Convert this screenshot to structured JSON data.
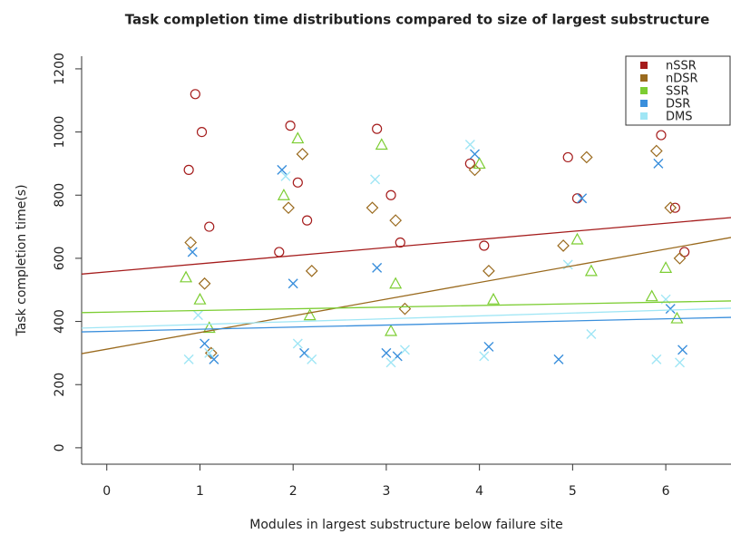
{
  "chart_data": {
    "type": "scatter",
    "title": "Task completion time distributions compared to size of largest substructure",
    "x_label": "Modules in largest substructure below failure site",
    "y_label": "Task completion time(s)",
    "xlim": [
      -0.27,
      6.7
    ],
    "ylim": [
      -52,
      1240
    ],
    "xticks": [
      0,
      1,
      2,
      3,
      4,
      5,
      6
    ],
    "yticks": [
      0,
      200,
      400,
      600,
      800,
      1000,
      1200
    ],
    "legend": "top-right",
    "series": [
      {
        "name": "nSSR",
        "color": "#a51c1c",
        "marker": "circle",
        "x": [
          0.95,
          1.02,
          0.88,
          1.1,
          1.97,
          2.05,
          2.15,
          1.85,
          2.9,
          3.05,
          3.15,
          3.9,
          4.05,
          4.95,
          5.05,
          5.95,
          6.1,
          6.2
        ],
        "values": [
          1120,
          1000,
          880,
          700,
          1020,
          840,
          720,
          620,
          1010,
          800,
          650,
          900,
          640,
          920,
          790,
          990,
          760,
          620
        ],
        "trend_line": {
          "x": [
            -0.27,
            6.7
          ],
          "y": [
            550,
            729
          ]
        }
      },
      {
        "name": "nDSR",
        "color": "#9a6a1e",
        "marker": "diamond",
        "x": [
          0.9,
          1.05,
          1.12,
          1.95,
          2.1,
          2.2,
          2.85,
          3.1,
          3.2,
          3.95,
          4.1,
          4.9,
          5.15,
          5.9,
          6.05,
          6.15
        ],
        "values": [
          650,
          520,
          300,
          760,
          930,
          560,
          760,
          720,
          440,
          880,
          560,
          640,
          920,
          940,
          760,
          600
        ],
        "trend_line": {
          "x": [
            -0.27,
            6.7
          ],
          "y": [
            298,
            666
          ]
        }
      },
      {
        "name": "SSR",
        "color": "#7ccd32",
        "marker": "triangle",
        "x": [
          0.85,
          1.0,
          1.1,
          1.9,
          2.05,
          2.18,
          2.95,
          3.05,
          3.1,
          4.0,
          4.15,
          5.05,
          5.2,
          5.85,
          6.0,
          6.12
        ],
        "values": [
          540,
          470,
          380,
          800,
          980,
          420,
          960,
          370,
          520,
          900,
          470,
          660,
          560,
          480,
          570,
          410
        ],
        "trend_line": {
          "x": [
            -0.27,
            6.7
          ],
          "y": [
            428,
            465
          ]
        }
      },
      {
        "name": "DSR",
        "color": "#3a8fdc",
        "marker": "x",
        "x": [
          0.92,
          1.05,
          1.15,
          1.88,
          2.0,
          2.12,
          2.9,
          3.0,
          3.12,
          3.95,
          4.1,
          4.85,
          5.1,
          5.92,
          6.05,
          6.18
        ],
        "values": [
          620,
          330,
          280,
          880,
          520,
          300,
          570,
          300,
          290,
          930,
          320,
          280,
          790,
          900,
          440,
          310
        ],
        "trend_line": {
          "x": [
            -0.27,
            6.7
          ],
          "y": [
            367,
            413
          ]
        }
      },
      {
        "name": "DMS",
        "color": "#a0e6f5",
        "marker": "x",
        "x": [
          0.88,
          0.98,
          1.1,
          1.92,
          2.05,
          2.2,
          2.88,
          3.05,
          3.2,
          3.9,
          4.05,
          4.95,
          5.2,
          5.9,
          6.0,
          6.15
        ],
        "values": [
          280,
          420,
          300,
          860,
          330,
          280,
          850,
          270,
          310,
          960,
          290,
          580,
          360,
          280,
          470,
          270
        ],
        "trend_line": {
          "x": [
            -0.27,
            6.7
          ],
          "y": [
            379,
            442
          ]
        }
      }
    ]
  }
}
